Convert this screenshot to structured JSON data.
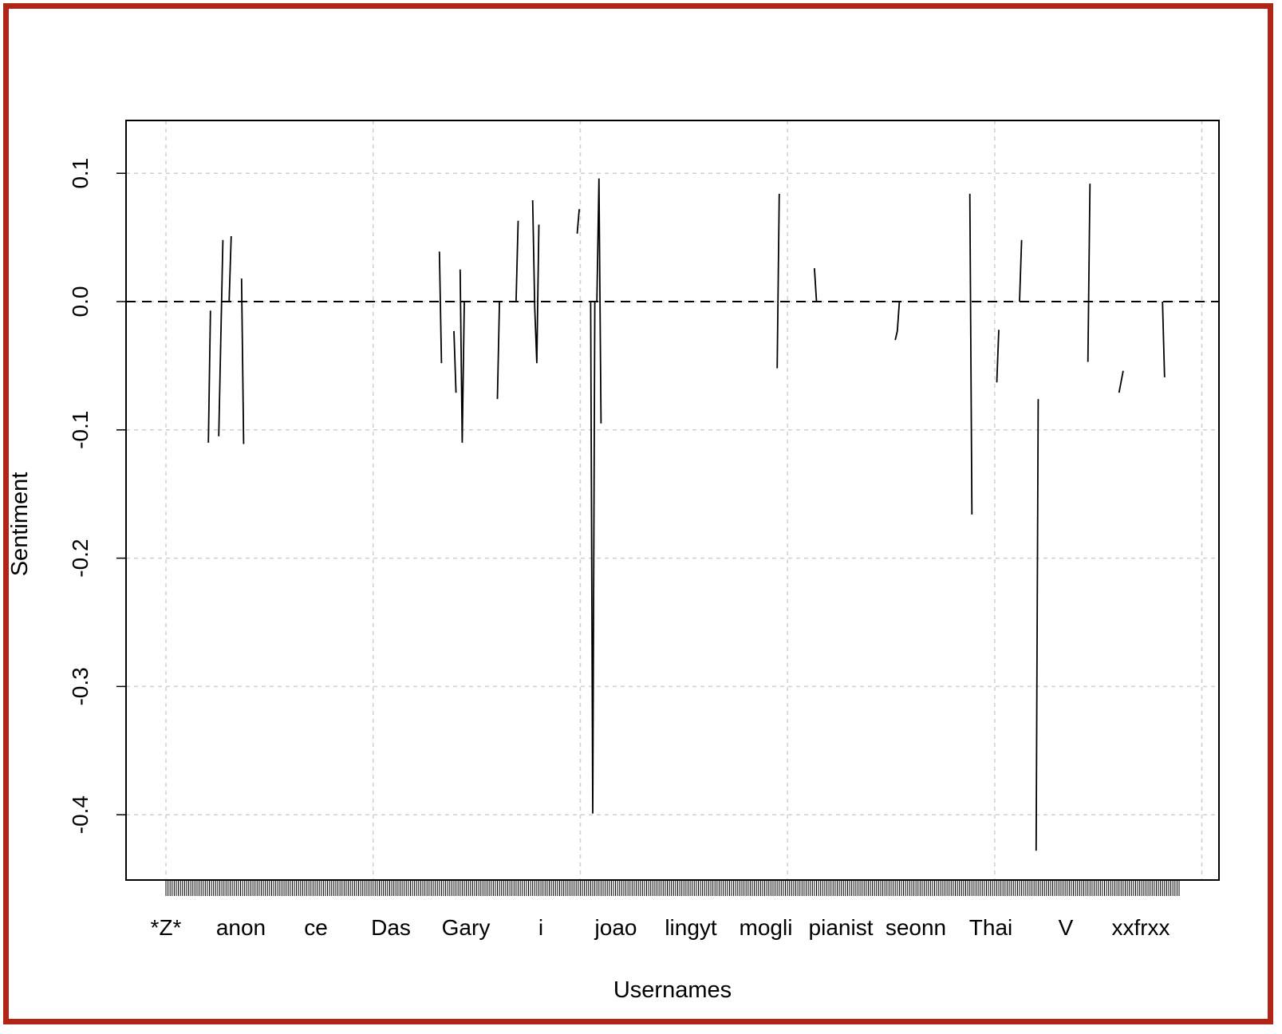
{
  "chart_data": {
    "type": "line",
    "title": "",
    "xlabel": "Usernames",
    "ylabel": "Sentiment",
    "ylim": [
      -0.47,
      0.14
    ],
    "grid": true,
    "reference_line": {
      "y": 0.0,
      "style": "dashed"
    },
    "y_ticks": [
      "0.1",
      "0.0",
      "-0.1",
      "-0.2",
      "-0.3",
      "-0.4"
    ],
    "y_tick_values": [
      0.1,
      0.0,
      -0.1,
      -0.2,
      -0.3,
      -0.4
    ],
    "x_tick_labels": [
      "*Z*",
      "anon",
      "ce",
      "Das",
      "Gary",
      "i",
      "joao",
      "lingyt",
      "mogli",
      "pianist",
      "seonn",
      "Thai",
      "V",
      "xxfrxx"
    ],
    "n_users": 490,
    "series": [
      {
        "values": [
          [
            21.5,
            -0.11
          ],
          [
            22.5,
            -0.007
          ]
        ]
      },
      {
        "values": [
          [
            26.5,
            -0.105
          ],
          [
            28.5,
            0.048
          ]
        ]
      },
      {
        "values": [
          [
            31.5,
            0.0
          ],
          [
            32.5,
            0.051
          ]
        ]
      },
      {
        "values": [
          [
            37.5,
            0.018
          ],
          [
            38.5,
            -0.111
          ]
        ]
      },
      {
        "values": [
          [
            133,
            0.039
          ],
          [
            134,
            -0.048
          ]
        ]
      },
      {
        "values": [
          [
            140,
            -0.023
          ],
          [
            141,
            -0.071
          ]
        ]
      },
      {
        "values": [
          [
            143,
            0.025
          ],
          [
            144,
            -0.11
          ],
          [
            145,
            0.0
          ],
          [
            146,
            0.0
          ]
        ]
      },
      {
        "values": [
          [
            161,
            -0.076
          ],
          [
            162,
            0.0
          ],
          [
            163,
            0.0
          ]
        ]
      },
      {
        "values": [
          [
            170,
            0.0
          ],
          [
            171,
            0.063
          ]
        ]
      },
      {
        "values": [
          [
            178,
            0.079
          ],
          [
            179,
            -0.005
          ],
          [
            180,
            -0.048
          ],
          [
            181,
            0.06
          ]
        ]
      },
      {
        "values": [
          [
            199.5,
            0.053
          ],
          [
            200.5,
            0.072
          ]
        ]
      },
      {
        "values": [
          [
            205,
            0.0
          ],
          [
            206,
            0.0
          ],
          [
            207,
            -0.399
          ],
          [
            208,
            0.0
          ],
          [
            209,
            0.0
          ],
          [
            210,
            0.096
          ],
          [
            211,
            -0.095
          ]
        ]
      },
      {
        "values": [
          [
            296,
            -0.052
          ],
          [
            297,
            0.084
          ]
        ]
      },
      {
        "values": [
          [
            314,
            0.026
          ],
          [
            315,
            0.0
          ]
        ]
      },
      {
        "values": [
          [
            353,
            -0.03
          ],
          [
            354,
            -0.023
          ],
          [
            355,
            0.0
          ]
        ]
      },
      {
        "values": [
          [
            389,
            0.084
          ],
          [
            390,
            -0.166
          ]
        ]
      },
      {
        "values": [
          [
            402,
            -0.063
          ],
          [
            403,
            -0.022
          ]
        ]
      },
      {
        "values": [
          [
            413,
            0.0
          ],
          [
            414,
            0.048
          ]
        ]
      },
      {
        "values": [
          [
            421,
            -0.428
          ],
          [
            422,
            -0.076
          ]
        ]
      },
      {
        "values": [
          [
            446,
            -0.047
          ],
          [
            447,
            0.092
          ]
        ]
      },
      {
        "values": [
          [
            461,
            -0.071
          ],
          [
            463,
            -0.054
          ]
        ]
      },
      {
        "values": [
          [
            482,
            0.0
          ],
          [
            483,
            -0.059
          ]
        ]
      }
    ]
  }
}
